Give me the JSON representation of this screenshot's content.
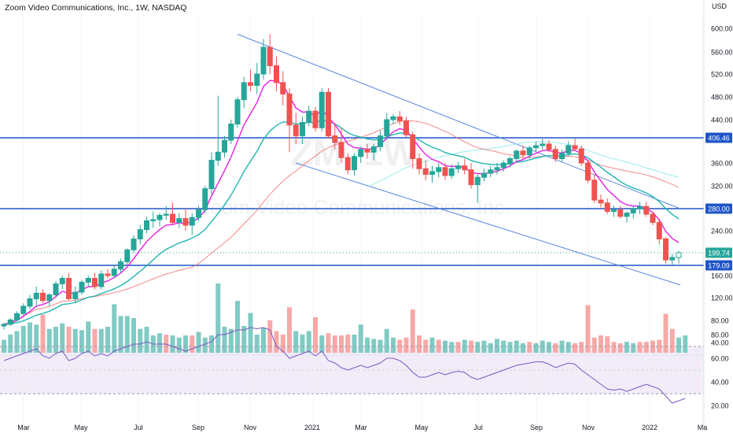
{
  "header": {
    "title": "Zoom Video Communications, Inc., 1W, NASDAQ",
    "currency": "USD"
  },
  "watermark": {
    "ticker": "ZM, 1W",
    "name": "Zoom Video Communications, Inc."
  },
  "colors": {
    "up": "#26a69a",
    "down": "#ef5350",
    "vol_up": "#80cbc4",
    "vol_down": "#f7a9a7",
    "ma_fast": "#e91ee3",
    "ma_mid": "#1fb5b0",
    "ma_slow": "#f06b6b",
    "ma_long": "#8fe8ef",
    "level": "#1e55c8",
    "channel": "#5a86e0"
  },
  "chart_data": {
    "type": "candlestick",
    "interval": "1W",
    "price_axis": {
      "ticks": [
        "600.00",
        "560.00",
        "520.00",
        "480.00",
        "440.00",
        "360.00",
        "320.00",
        "240.00",
        "160.00",
        "120.00",
        "80.00",
        "40.00"
      ],
      "ylim": [
        0,
        620
      ]
    },
    "time_axis": {
      "labels": [
        "Mar",
        "May",
        "Jul",
        "Sep",
        "Nov",
        "2021",
        "Mar",
        "May",
        "Jul",
        "Sep",
        "Nov",
        "2022",
        "Ma"
      ]
    },
    "price_badges": [
      {
        "value": "406.46",
        "type": "level"
      },
      {
        "value": "280.00",
        "type": "level"
      },
      {
        "value": "199.74",
        "type": "last"
      },
      {
        "value": "179.09",
        "type": "level"
      }
    ],
    "horizontal_levels": [
      406.46,
      280.0,
      179.09
    ],
    "last_price": 199.74,
    "candles": [
      {
        "o": 70,
        "h": 76,
        "l": 64,
        "c": 73
      },
      {
        "o": 73,
        "h": 84,
        "l": 70,
        "c": 81
      },
      {
        "o": 81,
        "h": 96,
        "l": 78,
        "c": 92
      },
      {
        "o": 92,
        "h": 110,
        "l": 88,
        "c": 105
      },
      {
        "o": 105,
        "h": 125,
        "l": 100,
        "c": 118
      },
      {
        "o": 118,
        "h": 140,
        "l": 105,
        "c": 128
      },
      {
        "o": 128,
        "h": 135,
        "l": 110,
        "c": 115
      },
      {
        "o": 115,
        "h": 128,
        "l": 105,
        "c": 125
      },
      {
        "o": 125,
        "h": 150,
        "l": 120,
        "c": 145
      },
      {
        "o": 145,
        "h": 160,
        "l": 135,
        "c": 155
      },
      {
        "o": 155,
        "h": 165,
        "l": 115,
        "c": 118
      },
      {
        "o": 118,
        "h": 140,
        "l": 110,
        "c": 130
      },
      {
        "o": 130,
        "h": 152,
        "l": 125,
        "c": 148
      },
      {
        "o": 148,
        "h": 160,
        "l": 140,
        "c": 155
      },
      {
        "o": 155,
        "h": 165,
        "l": 135,
        "c": 140
      },
      {
        "o": 140,
        "h": 170,
        "l": 135,
        "c": 163
      },
      {
        "o": 163,
        "h": 172,
        "l": 155,
        "c": 160
      },
      {
        "o": 160,
        "h": 178,
        "l": 155,
        "c": 172
      },
      {
        "o": 172,
        "h": 190,
        "l": 165,
        "c": 185
      },
      {
        "o": 185,
        "h": 208,
        "l": 180,
        "c": 205
      },
      {
        "o": 205,
        "h": 232,
        "l": 200,
        "c": 225
      },
      {
        "o": 225,
        "h": 250,
        "l": 215,
        "c": 242
      },
      {
        "o": 242,
        "h": 265,
        "l": 235,
        "c": 258
      },
      {
        "o": 258,
        "h": 275,
        "l": 245,
        "c": 260
      },
      {
        "o": 260,
        "h": 272,
        "l": 248,
        "c": 268
      },
      {
        "o": 268,
        "h": 285,
        "l": 260,
        "c": 270
      },
      {
        "o": 270,
        "h": 290,
        "l": 250,
        "c": 255
      },
      {
        "o": 255,
        "h": 272,
        "l": 245,
        "c": 262
      },
      {
        "o": 262,
        "h": 280,
        "l": 240,
        "c": 250
      },
      {
        "o": 250,
        "h": 272,
        "l": 232,
        "c": 264
      },
      {
        "o": 264,
        "h": 285,
        "l": 258,
        "c": 278
      },
      {
        "o": 278,
        "h": 320,
        "l": 272,
        "c": 315
      },
      {
        "o": 315,
        "h": 380,
        "l": 305,
        "c": 365
      },
      {
        "o": 365,
        "h": 482,
        "l": 355,
        "c": 380
      },
      {
        "o": 380,
        "h": 410,
        "l": 370,
        "c": 402
      },
      {
        "o": 402,
        "h": 440,
        "l": 395,
        "c": 432
      },
      {
        "o": 432,
        "h": 480,
        "l": 425,
        "c": 475
      },
      {
        "o": 475,
        "h": 515,
        "l": 460,
        "c": 505
      },
      {
        "o": 505,
        "h": 528,
        "l": 490,
        "c": 500
      },
      {
        "o": 500,
        "h": 540,
        "l": 485,
        "c": 520
      },
      {
        "o": 520,
        "h": 582,
        "l": 510,
        "c": 568
      },
      {
        "o": 568,
        "h": 590,
        "l": 520,
        "c": 535
      },
      {
        "o": 535,
        "h": 552,
        "l": 490,
        "c": 505
      },
      {
        "o": 505,
        "h": 525,
        "l": 465,
        "c": 485
      },
      {
        "o": 485,
        "h": 495,
        "l": 380,
        "c": 430
      },
      {
        "o": 430,
        "h": 452,
        "l": 395,
        "c": 410
      },
      {
        "o": 410,
        "h": 445,
        "l": 395,
        "c": 435
      },
      {
        "o": 435,
        "h": 465,
        "l": 428,
        "c": 455
      },
      {
        "o": 455,
        "h": 462,
        "l": 418,
        "c": 425
      },
      {
        "o": 425,
        "h": 495,
        "l": 418,
        "c": 488
      },
      {
        "o": 488,
        "h": 495,
        "l": 405,
        "c": 410
      },
      {
        "o": 410,
        "h": 430,
        "l": 385,
        "c": 398
      },
      {
        "o": 398,
        "h": 425,
        "l": 360,
        "c": 370
      },
      {
        "o": 370,
        "h": 378,
        "l": 340,
        "c": 348
      },
      {
        "o": 348,
        "h": 378,
        "l": 338,
        "c": 372
      },
      {
        "o": 372,
        "h": 390,
        "l": 360,
        "c": 385
      },
      {
        "o": 385,
        "h": 395,
        "l": 368,
        "c": 380
      },
      {
        "o": 380,
        "h": 395,
        "l": 365,
        "c": 390
      },
      {
        "o": 390,
        "h": 420,
        "l": 382,
        "c": 410
      },
      {
        "o": 410,
        "h": 452,
        "l": 402,
        "c": 440
      },
      {
        "o": 440,
        "h": 450,
        "l": 432,
        "c": 445
      },
      {
        "o": 445,
        "h": 455,
        "l": 430,
        "c": 438
      },
      {
        "o": 438,
        "h": 445,
        "l": 408,
        "c": 412
      },
      {
        "o": 412,
        "h": 418,
        "l": 350,
        "c": 368
      },
      {
        "o": 368,
        "h": 378,
        "l": 340,
        "c": 350
      },
      {
        "o": 350,
        "h": 365,
        "l": 330,
        "c": 340
      },
      {
        "o": 340,
        "h": 355,
        "l": 325,
        "c": 345
      },
      {
        "o": 345,
        "h": 360,
        "l": 335,
        "c": 352
      },
      {
        "o": 352,
        "h": 360,
        "l": 330,
        "c": 338
      },
      {
        "o": 338,
        "h": 358,
        "l": 332,
        "c": 350
      },
      {
        "o": 350,
        "h": 362,
        "l": 342,
        "c": 355
      },
      {
        "o": 355,
        "h": 368,
        "l": 340,
        "c": 348
      },
      {
        "o": 348,
        "h": 360,
        "l": 315,
        "c": 322
      },
      {
        "o": 322,
        "h": 340,
        "l": 290,
        "c": 335
      },
      {
        "o": 335,
        "h": 350,
        "l": 328,
        "c": 342
      },
      {
        "o": 342,
        "h": 355,
        "l": 335,
        "c": 348
      },
      {
        "o": 348,
        "h": 360,
        "l": 340,
        "c": 352
      },
      {
        "o": 352,
        "h": 365,
        "l": 345,
        "c": 360
      },
      {
        "o": 360,
        "h": 372,
        "l": 352,
        "c": 368
      },
      {
        "o": 368,
        "h": 385,
        "l": 362,
        "c": 382
      },
      {
        "o": 382,
        "h": 392,
        "l": 368,
        "c": 375
      },
      {
        "o": 375,
        "h": 392,
        "l": 368,
        "c": 388
      },
      {
        "o": 388,
        "h": 400,
        "l": 380,
        "c": 392
      },
      {
        "o": 392,
        "h": 405,
        "l": 385,
        "c": 395
      },
      {
        "o": 395,
        "h": 402,
        "l": 380,
        "c": 385
      },
      {
        "o": 385,
        "h": 392,
        "l": 362,
        "c": 368
      },
      {
        "o": 368,
        "h": 385,
        "l": 362,
        "c": 378
      },
      {
        "o": 378,
        "h": 400,
        "l": 372,
        "c": 392
      },
      {
        "o": 392,
        "h": 405,
        "l": 382,
        "c": 386
      },
      {
        "o": 386,
        "h": 392,
        "l": 355,
        "c": 360
      },
      {
        "o": 360,
        "h": 365,
        "l": 325,
        "c": 330
      },
      {
        "o": 330,
        "h": 340,
        "l": 290,
        "c": 295
      },
      {
        "o": 295,
        "h": 305,
        "l": 282,
        "c": 290
      },
      {
        "o": 290,
        "h": 298,
        "l": 270,
        "c": 275
      },
      {
        "o": 275,
        "h": 285,
        "l": 265,
        "c": 278
      },
      {
        "o": 278,
        "h": 285,
        "l": 262,
        "c": 266
      },
      {
        "o": 266,
        "h": 275,
        "l": 255,
        "c": 272
      },
      {
        "o": 272,
        "h": 285,
        "l": 262,
        "c": 280
      },
      {
        "o": 280,
        "h": 292,
        "l": 270,
        "c": 284
      },
      {
        "o": 284,
        "h": 292,
        "l": 265,
        "c": 270
      },
      {
        "o": 270,
        "h": 275,
        "l": 250,
        "c": 255
      },
      {
        "o": 255,
        "h": 262,
        "l": 215,
        "c": 225
      },
      {
        "o": 225,
        "h": 228,
        "l": 182,
        "c": 188
      },
      {
        "o": 188,
        "h": 198,
        "l": 179,
        "c": 192
      },
      {
        "o": 192,
        "h": 203,
        "l": 182,
        "c": 200
      }
    ],
    "volume": [
      {
        "v": 30,
        "d": 0
      },
      {
        "v": 42,
        "d": 0
      },
      {
        "v": 50,
        "d": 0
      },
      {
        "v": 62,
        "d": 0
      },
      {
        "v": 70,
        "d": 0
      },
      {
        "v": 65,
        "d": 0
      },
      {
        "v": 88,
        "d": 1
      },
      {
        "v": 55,
        "d": 0
      },
      {
        "v": 60,
        "d": 0
      },
      {
        "v": 68,
        "d": 0
      },
      {
        "v": 60,
        "d": 1
      },
      {
        "v": 55,
        "d": 0
      },
      {
        "v": 52,
        "d": 0
      },
      {
        "v": 72,
        "d": 0
      },
      {
        "v": 55,
        "d": 1
      },
      {
        "v": 55,
        "d": 0
      },
      {
        "v": 60,
        "d": 0
      },
      {
        "v": 112,
        "d": 0
      },
      {
        "v": 85,
        "d": 0
      },
      {
        "v": 85,
        "d": 0
      },
      {
        "v": 80,
        "d": 0
      },
      {
        "v": 55,
        "d": 0
      },
      {
        "v": 60,
        "d": 0
      },
      {
        "v": 40,
        "d": 0
      },
      {
        "v": 45,
        "d": 0
      },
      {
        "v": 42,
        "d": 1
      },
      {
        "v": 40,
        "d": 0
      },
      {
        "v": 35,
        "d": 0
      },
      {
        "v": 40,
        "d": 0
      },
      {
        "v": 40,
        "d": 1
      },
      {
        "v": 48,
        "d": 0
      },
      {
        "v": 35,
        "d": 0
      },
      {
        "v": 40,
        "d": 0
      },
      {
        "v": 160,
        "d": 0
      },
      {
        "v": 60,
        "d": 0
      },
      {
        "v": 55,
        "d": 0
      },
      {
        "v": 120,
        "d": 0
      },
      {
        "v": 62,
        "d": 0
      },
      {
        "v": 92,
        "d": 0
      },
      {
        "v": 42,
        "d": 0
      },
      {
        "v": 58,
        "d": 0
      },
      {
        "v": 75,
        "d": 1
      },
      {
        "v": 50,
        "d": 1
      },
      {
        "v": 42,
        "d": 1
      },
      {
        "v": 105,
        "d": 1
      },
      {
        "v": 50,
        "d": 0
      },
      {
        "v": 42,
        "d": 0
      },
      {
        "v": 50,
        "d": 0
      },
      {
        "v": 82,
        "d": 1
      },
      {
        "v": 40,
        "d": 0
      },
      {
        "v": 45,
        "d": 1
      },
      {
        "v": 40,
        "d": 1
      },
      {
        "v": 40,
        "d": 1
      },
      {
        "v": 42,
        "d": 1
      },
      {
        "v": 42,
        "d": 0
      },
      {
        "v": 65,
        "d": 0
      },
      {
        "v": 35,
        "d": 0
      },
      {
        "v": 32,
        "d": 0
      },
      {
        "v": 30,
        "d": 0
      },
      {
        "v": 55,
        "d": 0
      },
      {
        "v": 35,
        "d": 0
      },
      {
        "v": 30,
        "d": 1
      },
      {
        "v": 35,
        "d": 1
      },
      {
        "v": 100,
        "d": 1
      },
      {
        "v": 40,
        "d": 1
      },
      {
        "v": 30,
        "d": 1
      },
      {
        "v": 35,
        "d": 0
      },
      {
        "v": 30,
        "d": 1
      },
      {
        "v": 28,
        "d": 0
      },
      {
        "v": 25,
        "d": 0
      },
      {
        "v": 25,
        "d": 1
      },
      {
        "v": 30,
        "d": 0
      },
      {
        "v": 28,
        "d": 1
      },
      {
        "v": 25,
        "d": 0
      },
      {
        "v": 28,
        "d": 0
      },
      {
        "v": 22,
        "d": 0
      },
      {
        "v": 32,
        "d": 0
      },
      {
        "v": 28,
        "d": 0
      },
      {
        "v": 25,
        "d": 0
      },
      {
        "v": 28,
        "d": 0
      },
      {
        "v": 22,
        "d": 0
      },
      {
        "v": 25,
        "d": 1
      },
      {
        "v": 22,
        "d": 0
      },
      {
        "v": 28,
        "d": 0
      },
      {
        "v": 25,
        "d": 0
      },
      {
        "v": 22,
        "d": 1
      },
      {
        "v": 28,
        "d": 0
      },
      {
        "v": 25,
        "d": 0
      },
      {
        "v": 22,
        "d": 1
      },
      {
        "v": 25,
        "d": 1
      },
      {
        "v": 110,
        "d": 1
      },
      {
        "v": 35,
        "d": 1
      },
      {
        "v": 40,
        "d": 1
      },
      {
        "v": 38,
        "d": 1
      },
      {
        "v": 25,
        "d": 1
      },
      {
        "v": 22,
        "d": 1
      },
      {
        "v": 25,
        "d": 0
      },
      {
        "v": 22,
        "d": 0
      },
      {
        "v": 25,
        "d": 1
      },
      {
        "v": 25,
        "d": 1
      },
      {
        "v": 28,
        "d": 1
      },
      {
        "v": 30,
        "d": 1
      },
      {
        "v": 90,
        "d": 1
      },
      {
        "v": 55,
        "d": 1
      },
      {
        "v": 35,
        "d": 0
      },
      {
        "v": 40,
        "d": 0
      }
    ],
    "rsi": {
      "axis_ticks": [
        "80.00",
        "60.00",
        "40.00",
        "20.00"
      ],
      "band": [
        30,
        70
      ],
      "values": [
        58,
        60,
        62,
        64,
        66,
        68,
        62,
        60,
        64,
        66,
        58,
        60,
        64,
        66,
        62,
        64,
        62,
        66,
        68,
        70,
        72,
        72,
        74,
        72,
        72,
        72,
        70,
        68,
        66,
        68,
        70,
        72,
        74,
        80,
        80,
        82,
        84,
        84,
        86,
        85,
        86,
        84,
        70,
        66,
        60,
        62,
        64,
        66,
        62,
        66,
        58,
        56,
        52,
        50,
        52,
        54,
        52,
        54,
        56,
        60,
        60,
        58,
        54,
        48,
        44,
        44,
        46,
        48,
        46,
        48,
        49,
        48,
        44,
        42,
        44,
        46,
        48,
        50,
        52,
        54,
        55,
        56,
        57,
        57,
        55,
        52,
        54,
        56,
        55,
        50,
        46,
        42,
        38,
        34,
        33,
        34,
        32,
        34,
        36,
        38,
        36,
        34,
        28,
        22,
        24,
        26
      ]
    },
    "moving_averages": [
      {
        "id": "ma_fast",
        "period": 9
      },
      {
        "id": "ma_mid",
        "period": 20
      },
      {
        "id": "ma_slow",
        "period": 50
      },
      {
        "id": "ma_long",
        "period": 200
      }
    ]
  }
}
